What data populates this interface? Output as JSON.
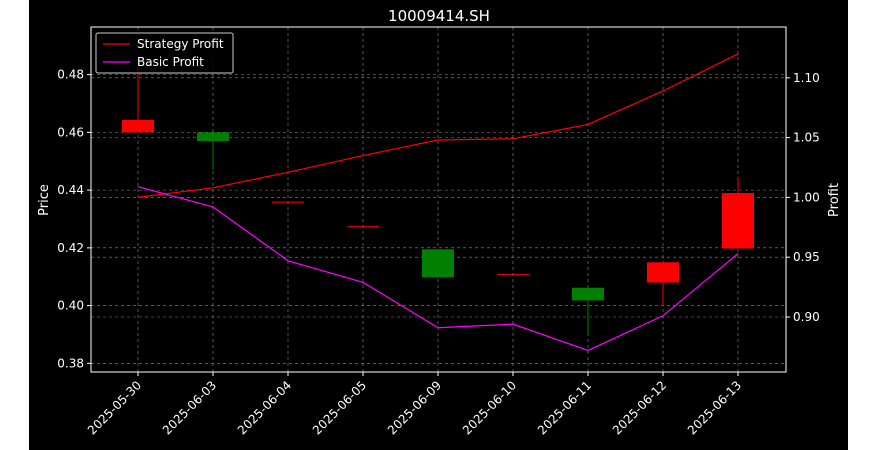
{
  "colors": {
    "figure_bg": "#000000",
    "axes_edge": "#ffffff",
    "text": "#ffffff",
    "grid": "#8a8a8a",
    "up": "#ff0000",
    "down": "#008000",
    "strategy_line": "#ff0000",
    "basic_line": "#ff00ff"
  },
  "chart_data": {
    "type": "candlestick+line",
    "title": "10009414.SH",
    "ylabel_left": "Price",
    "ylabel_right": "Profit",
    "categories": [
      "2025-05-30",
      "2025-06-03",
      "2025-06-04",
      "2025-06-05",
      "2025-06-09",
      "2025-06-10",
      "2025-06-11",
      "2025-06-12",
      "2025-06-13"
    ],
    "price_ylim": [
      0.377,
      0.4965
    ],
    "price_ticks": [
      "0.38",
      "0.40",
      "0.42",
      "0.44",
      "0.46",
      "0.48"
    ],
    "profit_ylim": [
      0.854,
      1.1425
    ],
    "profit_ticks": [
      "0.90",
      "0.95",
      "1.00",
      "1.05",
      "1.10"
    ],
    "grid": true,
    "legend_position": "top-left",
    "candles": [
      {
        "open": 0.46,
        "close": 0.4643,
        "high": 0.481,
        "low": 0.46
      },
      {
        "open": 0.46,
        "close": 0.457,
        "high": 0.46,
        "low": 0.447
      },
      {
        "open": 0.436,
        "close": 0.436,
        "high": 0.436,
        "low": 0.436
      },
      {
        "open": 0.4275,
        "close": 0.4275,
        "high": 0.4275,
        "low": 0.4275
      },
      {
        "open": 0.4195,
        "close": 0.4098,
        "high": 0.4195,
        "low": 0.4098
      },
      {
        "open": 0.411,
        "close": 0.411,
        "high": 0.411,
        "low": 0.411
      },
      {
        "open": 0.4062,
        "close": 0.4018,
        "high": 0.4062,
        "low": 0.3905
      },
      {
        "open": 0.408,
        "close": 0.415,
        "high": 0.415,
        "low": 0.4
      },
      {
        "open": 0.4198,
        "close": 0.439,
        "high": 0.4445,
        "low": 0.4198
      }
    ],
    "series": [
      {
        "name": "Strategy Profit",
        "values": [
          1.0,
          1.008,
          1.021,
          1.035,
          1.048,
          1.049,
          1.061,
          1.089,
          1.12
        ]
      },
      {
        "name": "Basic Profit",
        "values": [
          1.009,
          0.992,
          0.947,
          0.929,
          0.891,
          0.894,
          0.872,
          0.901,
          0.953
        ]
      }
    ]
  }
}
